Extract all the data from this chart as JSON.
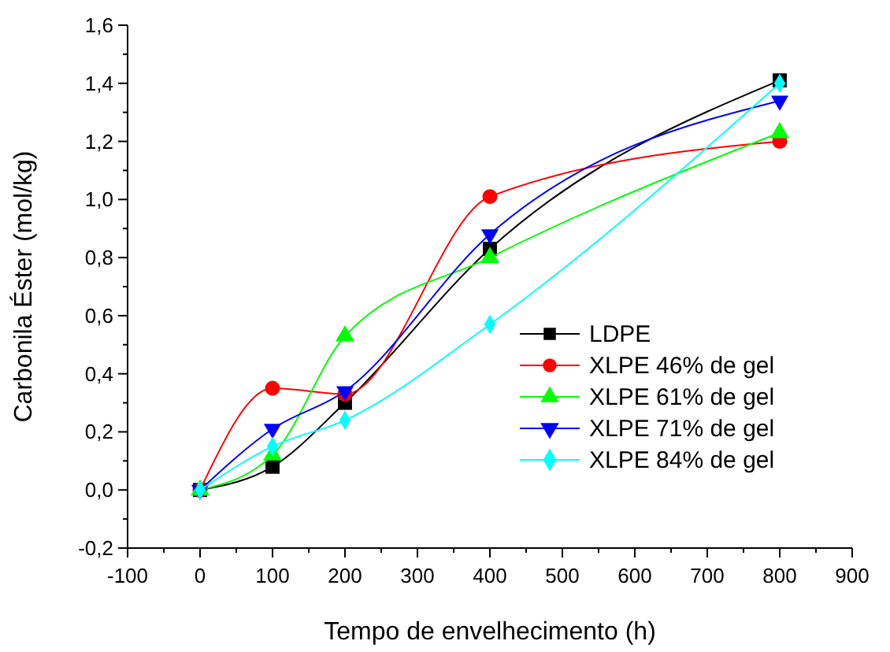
{
  "chart_data": {
    "type": "line",
    "xlabel": "Tempo de envelhecimento (h)",
    "ylabel": "Carbonila Éster (mol/kg)",
    "x": [
      0,
      100,
      200,
      400,
      800
    ],
    "series": [
      {
        "name": "LDPE",
        "color": "#000000",
        "marker": "square",
        "values": [
          0,
          0.08,
          0.3,
          0.83,
          1.41
        ]
      },
      {
        "name": "XLPE 46% de gel",
        "color": "#ff0000",
        "marker": "circle",
        "values": [
          0,
          0.35,
          0.33,
          1.01,
          1.2
        ]
      },
      {
        "name": "XLPE 61% de gel",
        "color": "#00ff00",
        "marker": "triangle",
        "values": [
          0,
          0.12,
          0.53,
          0.8,
          1.23
        ]
      },
      {
        "name": "XLPE 71% de gel",
        "color": "#0000ff",
        "marker": "triangle-down",
        "values": [
          0,
          0.21,
          0.34,
          0.88,
          1.34
        ]
      },
      {
        "name": "XLPE 84% de gel",
        "color": "#00ffff",
        "marker": "diamond",
        "values": [
          0,
          0.15,
          0.24,
          0.57,
          1.4
        ]
      }
    ],
    "xlim": [
      -100,
      900
    ],
    "xticks": [
      -100,
      0,
      100,
      200,
      300,
      400,
      500,
      600,
      700,
      800,
      900
    ],
    "ylim": [
      -0.2,
      1.6
    ],
    "yticks": [
      {
        "value": -0.2,
        "label": "-0,2"
      },
      {
        "value": 0,
        "label": "0,0"
      },
      {
        "value": 0.2,
        "label": "0,2"
      },
      {
        "value": 0.4,
        "label": "0,4"
      },
      {
        "value": 0.6,
        "label": "0,6"
      },
      {
        "value": 0.8,
        "label": "0,8"
      },
      {
        "value": 1,
        "label": "1,0"
      },
      {
        "value": 1.2,
        "label": "1,2"
      },
      {
        "value": 1.4,
        "label": "1,4"
      },
      {
        "value": 1.6,
        "label": "1,6"
      }
    ],
    "grid": false,
    "legend": "bottom right",
    "line_style": "solid"
  }
}
